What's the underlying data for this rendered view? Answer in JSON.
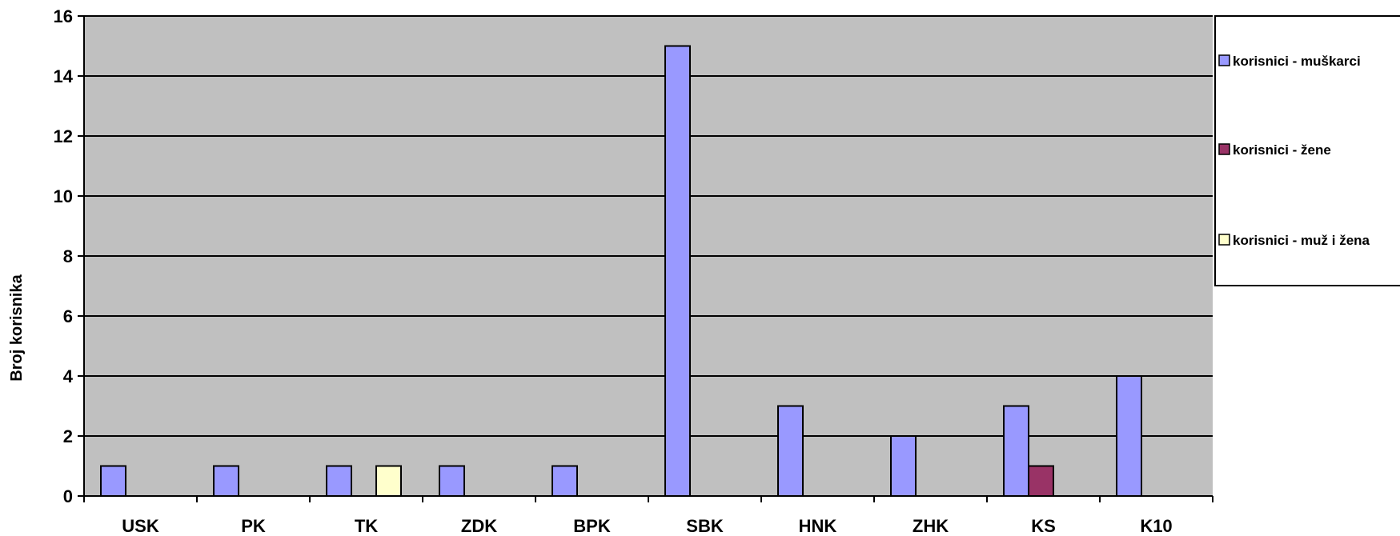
{
  "chart_data": {
    "type": "bar",
    "title": "",
    "xlabel": "",
    "ylabel": "Broj korisnika",
    "ylim": [
      0,
      16
    ],
    "yticks": [
      0,
      2,
      4,
      6,
      8,
      10,
      12,
      14,
      16
    ],
    "grid": true,
    "legend_position": "right",
    "categories": [
      "USK",
      "PK",
      "TK",
      "ZDK",
      "BPK",
      "SBK",
      "HNK",
      "ZHK",
      "KS",
      "K10"
    ],
    "series": [
      {
        "name": "korisnici - muškarci",
        "color": "#9999ff",
        "values": [
          1,
          1,
          1,
          1,
          1,
          15,
          3,
          2,
          3,
          4
        ]
      },
      {
        "name": "korisnici - žene",
        "color": "#993366",
        "values": [
          0,
          0,
          0,
          0,
          0,
          0,
          0,
          0,
          1,
          0
        ]
      },
      {
        "name": "korisnici - muž i žena",
        "color": "#ffffcc",
        "values": [
          0,
          0,
          1,
          0,
          0,
          0,
          0,
          0,
          0,
          0
        ]
      }
    ],
    "plot_background": "#c0c0c0"
  }
}
